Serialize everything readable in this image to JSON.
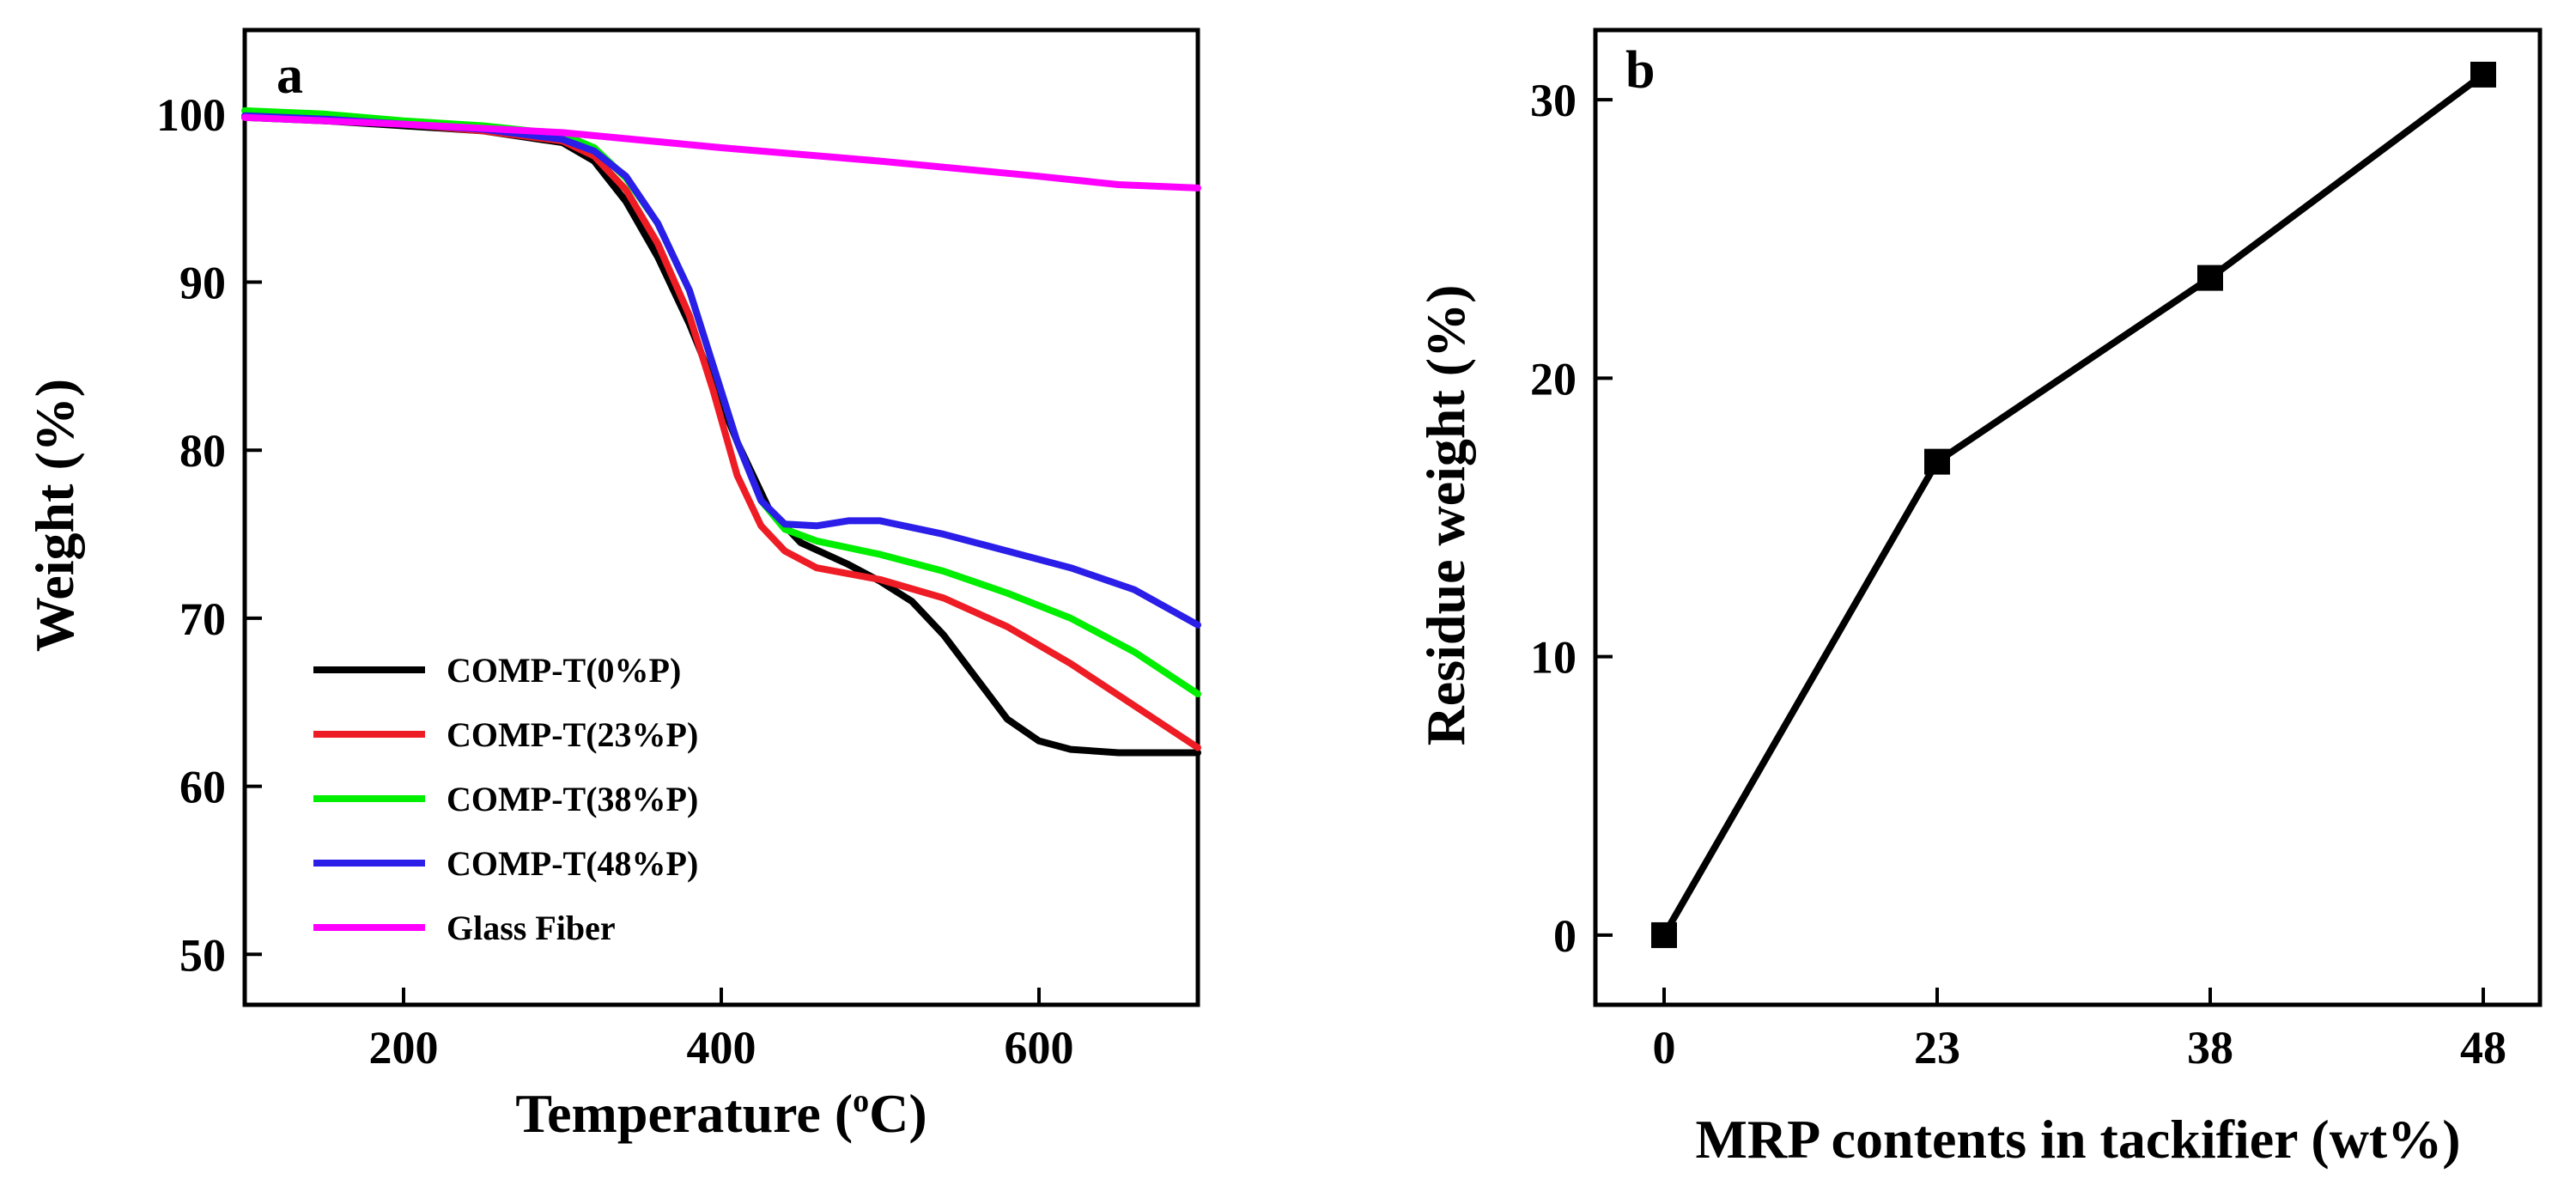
{
  "chart_data": [
    {
      "panel": "a",
      "type": "line",
      "xlabel": "Temperature (",
      "xlabel_sup": "o",
      "xlabel_tail": "C)",
      "ylabel": "Weight (%)",
      "xlim": [
        100,
        700
      ],
      "ylim": [
        47,
        105
      ],
      "xticks": [
        200,
        400,
        600
      ],
      "yticks": [
        50,
        60,
        70,
        80,
        90,
        100
      ],
      "legend_position": "bottom-left",
      "series": [
        {
          "name": "COMP-T(0%P)",
          "color": "#000000",
          "points": [
            [
              100,
              99.8
            ],
            [
              150,
              99.6
            ],
            [
              200,
              99.3
            ],
            [
              250,
              99.0
            ],
            [
              300,
              98.3
            ],
            [
              320,
              97.2
            ],
            [
              340,
              94.8
            ],
            [
              360,
              91.5
            ],
            [
              380,
              87.5
            ],
            [
              395,
              84.0
            ],
            [
              410,
              80.5
            ],
            [
              430,
              76.5
            ],
            [
              450,
              74.5
            ],
            [
              480,
              73.2
            ],
            [
              500,
              72.2
            ],
            [
              520,
              71.0
            ],
            [
              540,
              69.0
            ],
            [
              560,
              66.5
            ],
            [
              580,
              64.0
            ],
            [
              600,
              62.7
            ],
            [
              620,
              62.2
            ],
            [
              650,
              62.0
            ],
            [
              700,
              62.0
            ]
          ]
        },
        {
          "name": "COMP-T(23%P)",
          "color": "#ee1c24",
          "points": [
            [
              100,
              99.8
            ],
            [
              150,
              99.7
            ],
            [
              200,
              99.4
            ],
            [
              250,
              99.0
            ],
            [
              300,
              98.4
            ],
            [
              320,
              97.5
            ],
            [
              340,
              95.5
            ],
            [
              360,
              92.3
            ],
            [
              380,
              88.0
            ],
            [
              395,
              83.5
            ],
            [
              410,
              78.5
            ],
            [
              425,
              75.5
            ],
            [
              440,
              74.0
            ],
            [
              460,
              73.0
            ],
            [
              500,
              72.3
            ],
            [
              540,
              71.2
            ],
            [
              580,
              69.5
            ],
            [
              620,
              67.3
            ],
            [
              660,
              64.8
            ],
            [
              700,
              62.3
            ]
          ]
        },
        {
          "name": "COMP-T(38%P)",
          "color": "#00ee00",
          "points": [
            [
              100,
              100.2
            ],
            [
              150,
              100.0
            ],
            [
              200,
              99.6
            ],
            [
              250,
              99.3
            ],
            [
              300,
              98.8
            ],
            [
              320,
              98.0
            ],
            [
              340,
              96.2
            ],
            [
              360,
              93.5
            ],
            [
              380,
              89.5
            ],
            [
              395,
              85.0
            ],
            [
              410,
              80.5
            ],
            [
              425,
              77.0
            ],
            [
              440,
              75.3
            ],
            [
              460,
              74.6
            ],
            [
              500,
              73.8
            ],
            [
              540,
              72.8
            ],
            [
              580,
              71.5
            ],
            [
              620,
              70.0
            ],
            [
              660,
              68.0
            ],
            [
              700,
              65.5
            ]
          ]
        },
        {
          "name": "COMP-T(48%P)",
          "color": "#2a1ee8",
          "points": [
            [
              100,
              99.9
            ],
            [
              150,
              99.7
            ],
            [
              200,
              99.4
            ],
            [
              250,
              99.1
            ],
            [
              300,
              98.5
            ],
            [
              320,
              97.8
            ],
            [
              340,
              96.3
            ],
            [
              360,
              93.5
            ],
            [
              380,
              89.5
            ],
            [
              395,
              85.0
            ],
            [
              410,
              80.5
            ],
            [
              425,
              77.0
            ],
            [
              440,
              75.6
            ],
            [
              460,
              75.5
            ],
            [
              480,
              75.8
            ],
            [
              500,
              75.8
            ],
            [
              540,
              75.0
            ],
            [
              580,
              74.0
            ],
            [
              620,
              73.0
            ],
            [
              660,
              71.7
            ],
            [
              700,
              69.6
            ]
          ]
        },
        {
          "name": "Glass Fiber",
          "color": "#ff00ff",
          "points": [
            [
              100,
              99.8
            ],
            [
              200,
              99.4
            ],
            [
              300,
              98.9
            ],
            [
              400,
              98.0
            ],
            [
              500,
              97.2
            ],
            [
              600,
              96.3
            ],
            [
              650,
              95.8
            ],
            [
              700,
              95.6
            ]
          ]
        }
      ]
    },
    {
      "panel": "b",
      "type": "line",
      "marker": "square",
      "xlabel": "MRP contents in tackifier (wt%)",
      "ylabel": "Residue weight (%)",
      "categories": [
        "0",
        "23",
        "38",
        "48"
      ],
      "ylim": [
        -2.5,
        32.5
      ],
      "yticks": [
        0,
        10,
        20,
        30
      ],
      "series": [
        {
          "color": "#000000",
          "values": [
            0,
            17.0,
            23.6,
            30.9
          ]
        }
      ]
    }
  ]
}
